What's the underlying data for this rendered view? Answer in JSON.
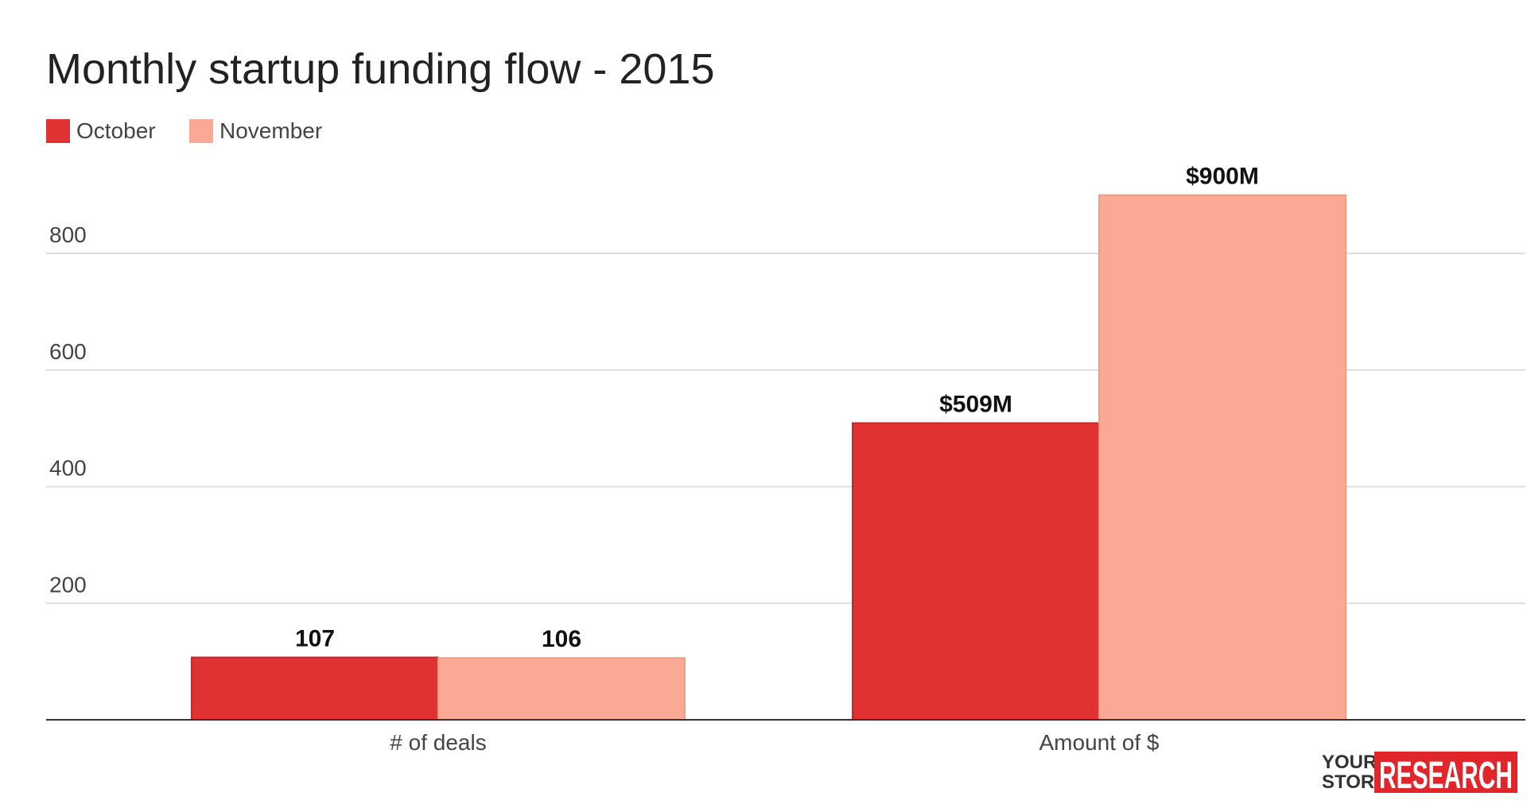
{
  "colors": {
    "october": "#e03232",
    "november": "#faaa94",
    "gridline": "#dddddd",
    "axis": "#333333",
    "logo_red": "#e0252b"
  },
  "logo": {
    "line1": "YOUR",
    "line2": "STORY",
    "word": "RESEARCH"
  },
  "chart_data": {
    "type": "bar",
    "title": "Monthly startup funding flow - 2015",
    "xlabel": "",
    "ylabel": "",
    "categories": [
      "# of deals",
      "Amount of $"
    ],
    "series": [
      {
        "name": "October",
        "values": [
          107,
          509
        ],
        "labels": [
          "107",
          "$509M"
        ]
      },
      {
        "name": "November",
        "values": [
          106,
          900
        ],
        "labels": [
          "106",
          "$900M"
        ]
      }
    ],
    "yticks": [
      "200",
      "400",
      "600",
      "800"
    ],
    "ytick_values": [
      200,
      400,
      600,
      800
    ],
    "ylim": [
      0,
      900
    ],
    "grid": true,
    "legend": "top-left"
  }
}
